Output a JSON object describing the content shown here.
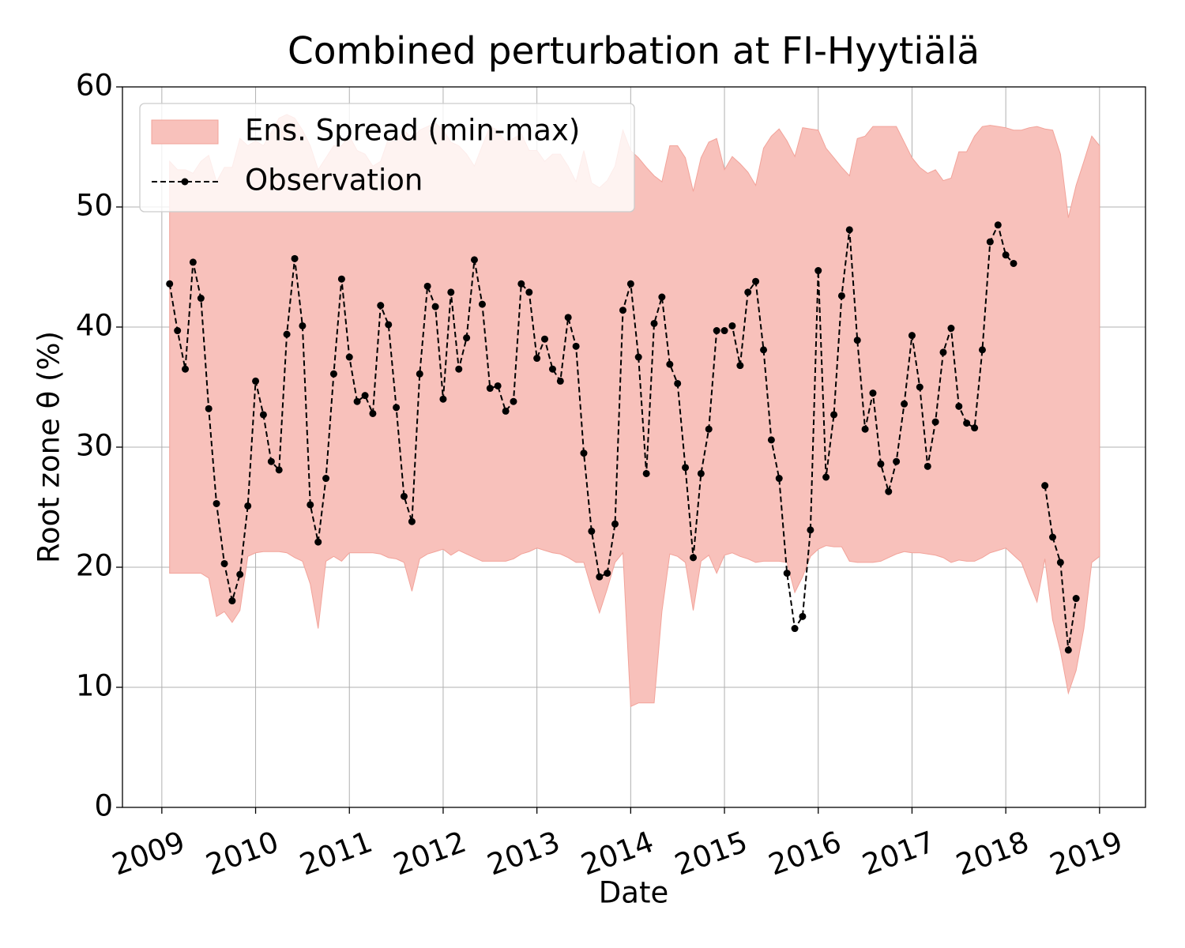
{
  "chart_data": {
    "type": "line",
    "title": "Combined perturbation at FI-Hyytiälä",
    "xlabel": "Date",
    "ylabel": "Root zone θ  (%)",
    "x": [
      2009.083,
      2009.167,
      2009.25,
      2009.333,
      2009.417,
      2009.5,
      2009.583,
      2009.667,
      2009.75,
      2009.833,
      2009.917,
      2010,
      2010.083,
      2010.167,
      2010.25,
      2010.333,
      2010.417,
      2010.5,
      2010.583,
      2010.667,
      2010.75,
      2010.833,
      2010.917,
      2011,
      2011.083,
      2011.167,
      2011.25,
      2011.333,
      2011.417,
      2011.5,
      2011.583,
      2011.667,
      2011.75,
      2011.833,
      2011.917,
      2012,
      2012.083,
      2012.167,
      2012.25,
      2012.333,
      2012.417,
      2012.5,
      2012.583,
      2012.667,
      2012.75,
      2012.833,
      2012.917,
      2013,
      2013.083,
      2013.167,
      2013.25,
      2013.333,
      2013.417,
      2013.5,
      2013.583,
      2013.667,
      2013.75,
      2013.833,
      2013.917,
      2014,
      2014.083,
      2014.167,
      2014.25,
      2014.333,
      2014.417,
      2014.5,
      2014.583,
      2014.667,
      2014.75,
      2014.833,
      2014.917,
      2015,
      2015.083,
      2015.167,
      2015.25,
      2015.333,
      2015.417,
      2015.5,
      2015.583,
      2015.667,
      2015.75,
      2015.833,
      2015.917,
      2016,
      2016.083,
      2016.167,
      2016.25,
      2016.333,
      2016.417,
      2016.5,
      2016.583,
      2016.667,
      2016.75,
      2016.833,
      2016.917,
      2017,
      2017.083,
      2017.167,
      2017.25,
      2017.333,
      2017.417,
      2017.5,
      2017.583,
      2017.667,
      2017.75,
      2017.833,
      2017.917,
      2018,
      2018.083,
      2018.167,
      2018.25,
      2018.333,
      2018.417,
      2018.5,
      2018.583,
      2018.667,
      2018.75,
      2018.833,
      2018.917,
      2019
    ],
    "series": [
      {
        "name": "Ens. Spread (min-max)",
        "color": "#f8c1bb",
        "edge": "#f2a39a",
        "upper": [
          53.8,
          53.1,
          53.1,
          52.8,
          53.8,
          54.3,
          52.1,
          53.3,
          53.3,
          55.7,
          55.1,
          55.5,
          55.1,
          56.2,
          57.4,
          57.7,
          57.4,
          56.4,
          55.1,
          53.1,
          54.1,
          55.1,
          55.1,
          55.9,
          54.7,
          54.4,
          53.4,
          53.8,
          55.7,
          55.4,
          56.4,
          55.7,
          56.4,
          56.7,
          57.0,
          56.4,
          55.4,
          55.1,
          54.4,
          53.4,
          55.1,
          56.7,
          56.4,
          55.4,
          55.7,
          56.1,
          54.7,
          54.7,
          53.8,
          54.4,
          54.4,
          53.4,
          52.1,
          54.7,
          52.0,
          51.6,
          52.2,
          53.4,
          56.4,
          54.7,
          54.1,
          53.3,
          52.6,
          52.1,
          55.1,
          55.1,
          54.1,
          51.3,
          54.1,
          55.4,
          55.7,
          53.1,
          54.2,
          53.6,
          52.9,
          51.8,
          54.9,
          55.9,
          56.5,
          55.5,
          54.2,
          56.6,
          56.5,
          56.4,
          54.9,
          54.1,
          53.3,
          52.6,
          55.7,
          55.9,
          56.7,
          56.7,
          56.7,
          56.7,
          55.4,
          54.1,
          53.3,
          52.8,
          53.1,
          52.2,
          52.4,
          54.6,
          54.6,
          55.9,
          56.7,
          56.8,
          56.7,
          56.6,
          56.4,
          56.4,
          56.6,
          56.7,
          56.5,
          56.4,
          54.4,
          49.1,
          51.8,
          53.8,
          55.9,
          55.1
        ],
        "lower": [
          19.5,
          19.5,
          19.5,
          19.5,
          19.5,
          19.1,
          15.9,
          16.3,
          15.4,
          16.4,
          20.9,
          21.2,
          21.3,
          21.3,
          21.3,
          21.2,
          20.8,
          20.5,
          18.6,
          14.9,
          20.5,
          20.9,
          20.5,
          21.2,
          21.2,
          21.2,
          21.2,
          21.1,
          20.8,
          20.7,
          20.4,
          18.0,
          20.7,
          21.1,
          21.3,
          21.5,
          21.0,
          21.4,
          21.1,
          20.8,
          20.5,
          20.5,
          20.5,
          20.5,
          20.7,
          21.1,
          21.3,
          21.6,
          21.4,
          21.2,
          21.1,
          20.8,
          20.4,
          20.4,
          18.2,
          16.2,
          18.2,
          20.4,
          21.2,
          8.4,
          8.7,
          8.7,
          8.7,
          16.3,
          21.1,
          20.9,
          20.4,
          16.4,
          20.5,
          21.0,
          19.5,
          21.0,
          21.2,
          20.9,
          20.7,
          20.4,
          20.5,
          20.5,
          20.5,
          20.4,
          17.9,
          19.2,
          20.9,
          21.5,
          21.8,
          21.7,
          21.7,
          20.5,
          20.4,
          20.4,
          20.4,
          20.5,
          20.8,
          21.1,
          21.3,
          21.2,
          21.2,
          21.1,
          21.0,
          20.8,
          20.4,
          20.6,
          20.5,
          20.5,
          20.8,
          21.2,
          21.4,
          21.6,
          21.0,
          20.4,
          18.7,
          17.1,
          20.7,
          15.6,
          13.0,
          9.5,
          11.4,
          14.9,
          20.4,
          20.9
        ]
      },
      {
        "name": "Observation",
        "color": "#000000",
        "values": [
          43.6,
          39.7,
          36.5,
          45.4,
          42.4,
          33.2,
          25.3,
          20.3,
          17.2,
          19.4,
          25.1,
          35.5,
          32.7,
          28.8,
          28.1,
          39.4,
          45.7,
          40.1,
          25.2,
          22.1,
          27.4,
          36.1,
          44.0,
          37.5,
          33.8,
          34.3,
          32.8,
          41.8,
          40.2,
          33.3,
          25.9,
          23.8,
          36.1,
          43.4,
          41.7,
          34.0,
          42.9,
          36.5,
          39.1,
          45.6,
          41.9,
          34.9,
          35.1,
          33.0,
          33.8,
          43.6,
          42.9,
          37.4,
          39.0,
          36.5,
          35.5,
          40.8,
          38.4,
          29.5,
          23.0,
          19.2,
          19.5,
          23.6,
          41.4,
          43.6,
          37.5,
          27.8,
          40.3,
          42.5,
          36.9,
          35.3,
          28.3,
          20.8,
          27.8,
          31.5,
          39.7,
          39.7,
          40.1,
          36.8,
          42.9,
          43.8,
          38.1,
          30.6,
          27.4,
          19.5,
          14.9,
          15.9,
          23.1,
          44.7,
          27.5,
          32.7,
          42.6,
          48.1,
          38.9,
          31.5,
          34.5,
          28.6,
          26.3,
          28.8,
          33.6,
          39.3,
          35.0,
          28.4,
          32.1,
          37.9,
          39.9,
          33.4,
          32.0,
          31.6,
          38.1,
          47.1,
          48.5,
          46.0,
          45.3,
          null,
          null,
          null,
          26.8,
          22.5,
          20.4,
          13.1,
          17.4,
          null,
          null,
          null
        ]
      }
    ],
    "xlim": [
      2008.58,
      2019.49
    ],
    "ylim": [
      0,
      60
    ],
    "xticks": [
      2009,
      2010,
      2011,
      2012,
      2013,
      2014,
      2015,
      2016,
      2017,
      2018,
      2019
    ],
    "yticks": [
      0,
      10,
      20,
      30,
      40,
      50,
      60
    ],
    "grid": true,
    "legend": "upper left"
  }
}
